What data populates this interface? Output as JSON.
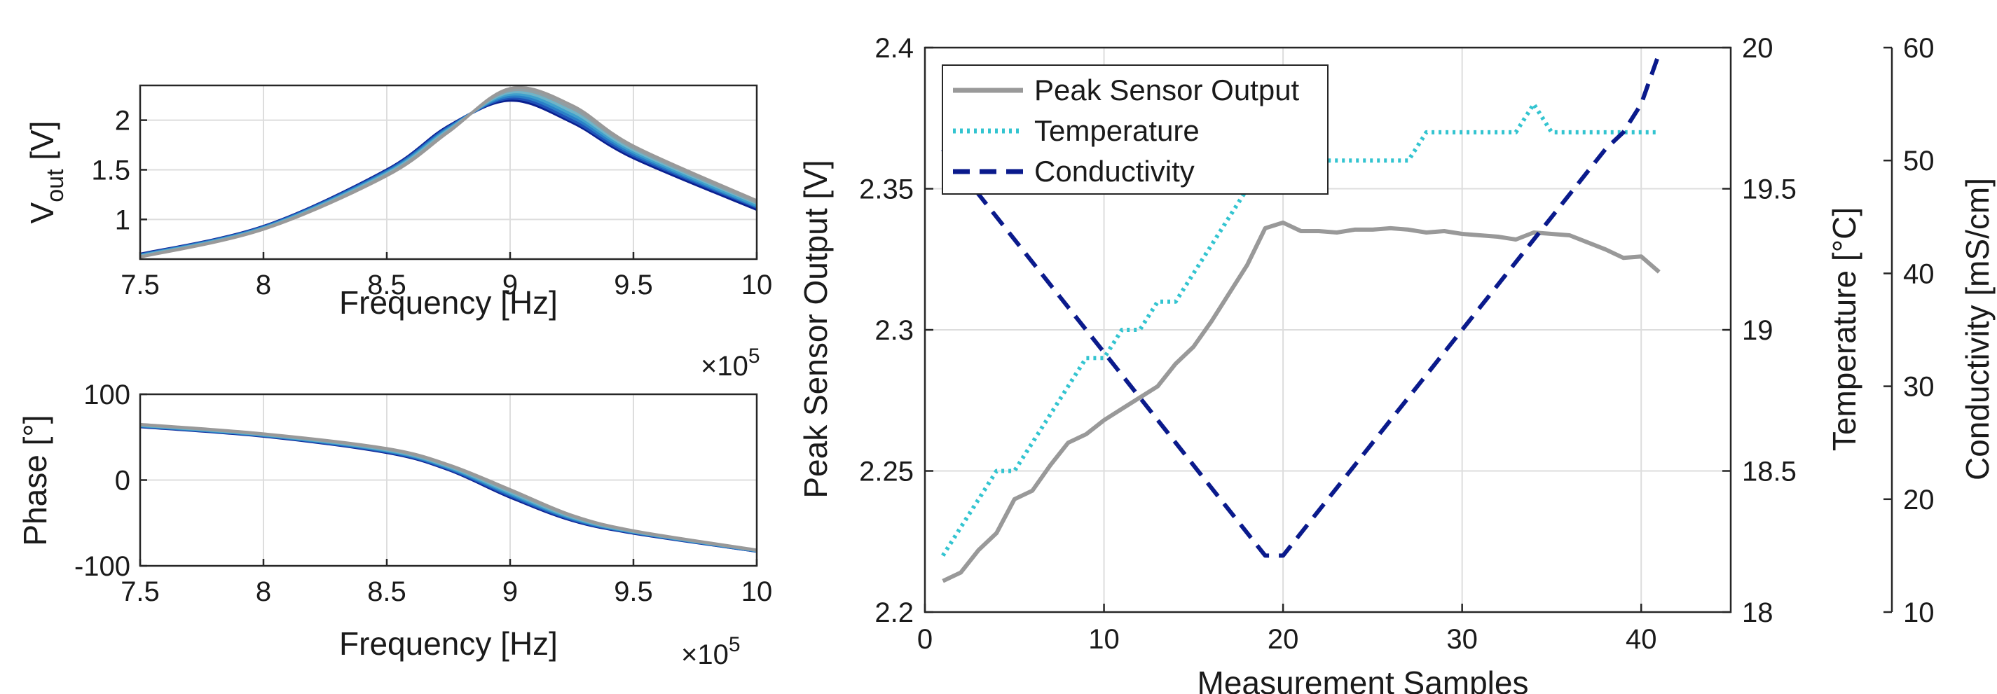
{
  "chart_data": [
    {
      "type": "line",
      "id": "vout",
      "xlabel": "Frequency [Hz]",
      "ylabel_main": "V",
      "ylabel_sub": "out",
      "ylabel_tail": " [V]",
      "x_exponent_base": "×10",
      "x_exponent_power": "5",
      "xlim": [
        7.5,
        10
      ],
      "ylim": [
        0.6,
        2.35
      ],
      "xticks": [
        "7.5",
        "8",
        "8.5",
        "9",
        "9.5",
        "10"
      ],
      "yticks": [
        "1",
        "1.5",
        "2"
      ],
      "grid": true,
      "colors": [
        "#0a1f8f",
        "#1f52b8",
        "#2a7fc7",
        "#3fa0cc",
        "#6fb4c8",
        "#8f9ea4",
        "#999999"
      ],
      "series": [
        {
          "x": [
            7.5,
            8.0,
            8.5,
            8.75,
            9.0,
            9.25,
            9.5,
            10.0
          ],
          "values": [
            0.65,
            0.93,
            1.5,
            1.94,
            2.2,
            1.98,
            1.62,
            1.1
          ]
        },
        {
          "x": [
            7.5,
            8.0,
            8.5,
            8.75,
            9.0,
            9.25,
            9.5,
            10.0
          ],
          "values": [
            0.645,
            0.925,
            1.49,
            1.93,
            2.22,
            2.0,
            1.64,
            1.12
          ]
        },
        {
          "x": [
            7.5,
            8.0,
            8.5,
            8.75,
            9.0,
            9.25,
            9.5,
            10.0
          ],
          "values": [
            0.64,
            0.92,
            1.48,
            1.92,
            2.24,
            2.03,
            1.66,
            1.13
          ]
        },
        {
          "x": [
            7.5,
            8.0,
            8.5,
            8.75,
            9.0,
            9.25,
            9.5,
            10.0
          ],
          "values": [
            0.635,
            0.915,
            1.47,
            1.91,
            2.26,
            2.06,
            1.68,
            1.14
          ]
        },
        {
          "x": [
            7.5,
            8.0,
            8.5,
            8.75,
            9.0,
            9.25,
            9.5,
            10.0
          ],
          "values": [
            0.63,
            0.91,
            1.46,
            1.9,
            2.28,
            2.09,
            1.7,
            1.16
          ]
        },
        {
          "x": [
            7.5,
            8.0,
            8.5,
            8.75,
            9.0,
            9.25,
            9.5,
            10.0
          ],
          "values": [
            0.625,
            0.905,
            1.45,
            1.89,
            2.3,
            2.12,
            1.72,
            1.17
          ]
        },
        {
          "x": [
            7.5,
            8.0,
            8.5,
            8.75,
            9.0,
            9.25,
            9.5,
            10.0
          ],
          "values": [
            0.62,
            0.9,
            1.44,
            1.88,
            2.32,
            2.15,
            1.74,
            1.19
          ]
        }
      ]
    },
    {
      "type": "line",
      "id": "phase",
      "xlabel": "Frequency [Hz]",
      "ylabel": "Phase [°]",
      "x_exponent_base": "×10",
      "x_exponent_power": "5",
      "xlim": [
        7.5,
        10
      ],
      "ylim": [
        -100,
        100
      ],
      "xticks": [
        "7.5",
        "8",
        "8.5",
        "9",
        "9.5",
        "10"
      ],
      "yticks": [
        "-100",
        "0",
        "100"
      ],
      "grid": true,
      "colors": [
        "#0a1f8f",
        "#1f52b8",
        "#2a7fc7",
        "#3fa0cc",
        "#6fb4c8",
        "#8f9ea4",
        "#999999"
      ],
      "series": [
        {
          "x": [
            7.5,
            8.0,
            8.5,
            8.75,
            9.0,
            9.25,
            9.5,
            10.0
          ],
          "values": [
            62,
            51,
            32,
            12,
            -20,
            -47,
            -62,
            -83
          ]
        },
        {
          "x": [
            7.5,
            8.0,
            8.5,
            8.75,
            9.0,
            9.25,
            9.5,
            10.0
          ],
          "values": [
            62.5,
            51.5,
            32.8,
            13,
            -18.5,
            -46,
            -61.5,
            -83
          ]
        },
        {
          "x": [
            7.5,
            8.0,
            8.5,
            8.75,
            9.0,
            9.25,
            9.5,
            10.0
          ],
          "values": [
            63,
            52,
            33.6,
            14,
            -17,
            -45,
            -61,
            -82.5
          ]
        },
        {
          "x": [
            7.5,
            8.0,
            8.5,
            8.75,
            9.0,
            9.25,
            9.5,
            10.0
          ],
          "values": [
            63.5,
            52.5,
            34.4,
            15,
            -15.5,
            -44,
            -60.5,
            -82.5
          ]
        },
        {
          "x": [
            7.5,
            8.0,
            8.5,
            8.75,
            9.0,
            9.25,
            9.5,
            10.0
          ],
          "values": [
            64,
            53,
            35.2,
            16,
            -14,
            -43,
            -60,
            -82
          ]
        },
        {
          "x": [
            7.5,
            8.0,
            8.5,
            8.75,
            9.0,
            9.25,
            9.5,
            10.0
          ],
          "values": [
            64.5,
            53.5,
            36,
            17,
            -12.5,
            -42,
            -59.5,
            -82
          ]
        },
        {
          "x": [
            7.5,
            8.0,
            8.5,
            8.75,
            9.0,
            9.25,
            9.5,
            10.0
          ],
          "values": [
            65,
            54,
            36.8,
            18,
            -11,
            -41,
            -59,
            -81.5
          ]
        }
      ]
    },
    {
      "type": "line",
      "id": "samples",
      "xlabel": "Measurement Samples",
      "xlim": [
        0,
        45
      ],
      "xticks": [
        "0",
        "10",
        "20",
        "30",
        "40"
      ],
      "grid": true,
      "legend_position": "top-left",
      "axes": [
        {
          "label": "Peak Sensor Output [V]",
          "side": "left",
          "ylim": [
            2.2,
            2.4
          ],
          "ticks": [
            "2.2",
            "2.25",
            "2.3",
            "2.35",
            "2.4"
          ]
        },
        {
          "label": "Temperature [°C]",
          "side": "right",
          "ylim": [
            18,
            20
          ],
          "ticks": [
            "18",
            "18.5",
            "19",
            "19.5",
            "20"
          ]
        },
        {
          "label": "Conductivity [mS/cm]",
          "side": "right-outer",
          "ylim": [
            10,
            60
          ],
          "ticks": [
            "10",
            "20",
            "30",
            "40",
            "50",
            "60"
          ]
        }
      ],
      "series": [
        {
          "name": "Peak Sensor Output",
          "axis": 0,
          "color": "#999999",
          "style": "solid",
          "x": [
            1,
            2,
            3,
            4,
            5,
            6,
            7,
            8,
            9,
            10,
            11,
            12,
            13,
            14,
            15,
            16,
            17,
            18,
            19,
            20,
            21,
            22,
            23,
            24,
            25,
            26,
            27,
            28,
            29,
            30,
            31,
            32,
            33,
            34,
            35,
            36,
            37,
            38,
            39,
            40,
            41
          ],
          "values": [
            2.211,
            2.214,
            2.222,
            2.228,
            2.24,
            2.243,
            2.252,
            2.26,
            2.263,
            2.268,
            2.272,
            2.276,
            2.28,
            2.288,
            2.294,
            2.303,
            2.313,
            2.323,
            2.336,
            2.338,
            2.335,
            2.335,
            2.3345,
            2.3355,
            2.3355,
            2.336,
            2.3355,
            2.3345,
            2.335,
            2.334,
            2.3335,
            2.333,
            2.332,
            2.3345,
            2.334,
            2.3335,
            2.331,
            2.3285,
            2.3255,
            2.326,
            2.3205
          ]
        },
        {
          "name": "Temperature",
          "axis": 1,
          "color": "#33c4d0",
          "style": "dotted",
          "x": [
            1,
            2,
            3,
            4,
            5,
            6,
            7,
            8,
            9,
            10,
            11,
            12,
            13,
            14,
            15,
            16,
            17,
            18,
            19,
            20,
            21,
            22,
            23,
            24,
            25,
            26,
            27,
            28,
            29,
            30,
            31,
            32,
            33,
            34,
            35,
            36,
            37,
            38,
            39,
            40,
            41
          ],
          "values": [
            18.2,
            18.3,
            18.4,
            18.5,
            18.5,
            18.6,
            18.7,
            18.8,
            18.9,
            18.9,
            19.0,
            19.0,
            19.1,
            19.1,
            19.2,
            19.3,
            19.4,
            19.5,
            19.6,
            19.6,
            19.6,
            19.6,
            19.6,
            19.6,
            19.6,
            19.6,
            19.6,
            19.7,
            19.7,
            19.7,
            19.7,
            19.7,
            19.7,
            19.8,
            19.7,
            19.7,
            19.7,
            19.7,
            19.7,
            19.7,
            19.7
          ]
        },
        {
          "name": "Conductivity",
          "axis": 2,
          "color": "#0a1a8c",
          "style": "dashed",
          "x": [
            1,
            19,
            20,
            38,
            39,
            40,
            41
          ],
          "values": [
            51,
            15,
            15,
            51,
            52.5,
            55,
            59.5
          ]
        }
      ]
    }
  ]
}
